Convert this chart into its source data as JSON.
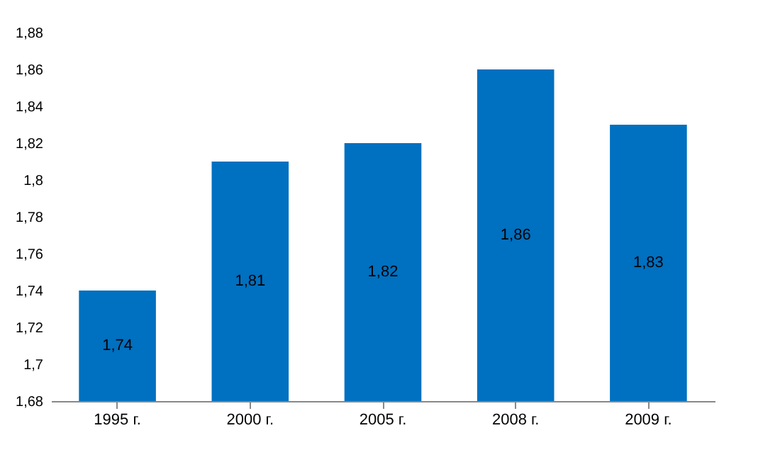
{
  "chart_data": {
    "type": "bar",
    "categories": [
      "1995 г.",
      "2000 г.",
      "2005 г.",
      "2008 г.",
      "2009 г."
    ],
    "values": [
      1.74,
      1.81,
      1.82,
      1.86,
      1.83
    ],
    "value_labels": [
      "1,74",
      "1,81",
      "1,82",
      "1,86",
      "1,83"
    ],
    "color": "#0070c0",
    "ylim": [
      1.68,
      1.88
    ],
    "yticks": [
      {
        "value": 1.68,
        "label": "1,68"
      },
      {
        "value": 1.7,
        "label": "1,7"
      },
      {
        "value": 1.72,
        "label": "1,72"
      },
      {
        "value": 1.74,
        "label": "1,74"
      },
      {
        "value": 1.76,
        "label": "1,76"
      },
      {
        "value": 1.78,
        "label": "1,78"
      },
      {
        "value": 1.8,
        "label": "1,8"
      },
      {
        "value": 1.82,
        "label": "1,82"
      },
      {
        "value": 1.84,
        "label": "1,84"
      },
      {
        "value": 1.86,
        "label": "1,86"
      },
      {
        "value": 1.88,
        "label": "1,88"
      }
    ],
    "grid": false
  }
}
